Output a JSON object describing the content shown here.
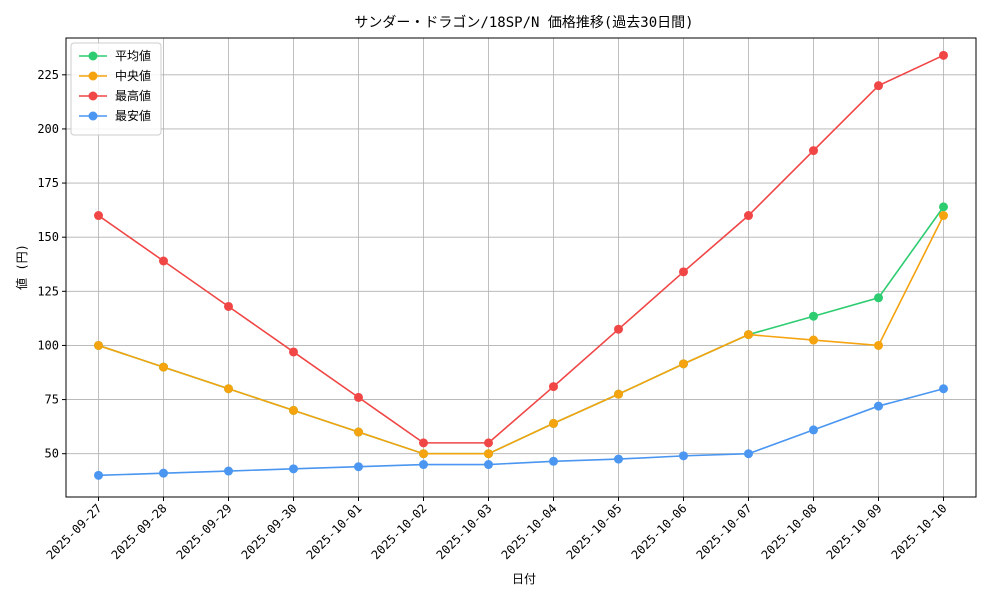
{
  "chart_data": {
    "type": "line",
    "title": "サンダー・ドラゴン/18SP/N 価格推移(過去30日間)",
    "xlabel": "日付",
    "ylabel": "値 (円)",
    "grid": true,
    "legend_position": "top-left",
    "ylim": [
      30,
      242
    ],
    "yticks": [
      50,
      75,
      100,
      125,
      150,
      175,
      200,
      225
    ],
    "categories": [
      "2025-09-27",
      "2025-09-28",
      "2025-09-29",
      "2025-09-30",
      "2025-10-01",
      "2025-10-02",
      "2025-10-03",
      "2025-10-04",
      "2025-10-05",
      "2025-10-06",
      "2025-10-07",
      "2025-10-08",
      "2025-10-09",
      "2025-10-10"
    ],
    "series": [
      {
        "name": "平均値",
        "color": "#2ecc71",
        "values": [
          100,
          90,
          80,
          70,
          60,
          50,
          50,
          64,
          77.5,
          91.5,
          105,
          113.5,
          122,
          164
        ]
      },
      {
        "name": "中央値",
        "color": "#f5a30f",
        "values": [
          100,
          90,
          80,
          70,
          60,
          50,
          50,
          64,
          77.5,
          91.5,
          105,
          102.5,
          100,
          160
        ]
      },
      {
        "name": "最高値",
        "color": "#f04646",
        "values": [
          160,
          139,
          118,
          97,
          76,
          55,
          55,
          81,
          107.5,
          134,
          160,
          190,
          220,
          234
        ]
      },
      {
        "name": "最安値",
        "color": "#4a96f0",
        "values": [
          40,
          41,
          42,
          43,
          44,
          45,
          45,
          46.5,
          47.5,
          49,
          50,
          61,
          72,
          80
        ]
      }
    ]
  }
}
